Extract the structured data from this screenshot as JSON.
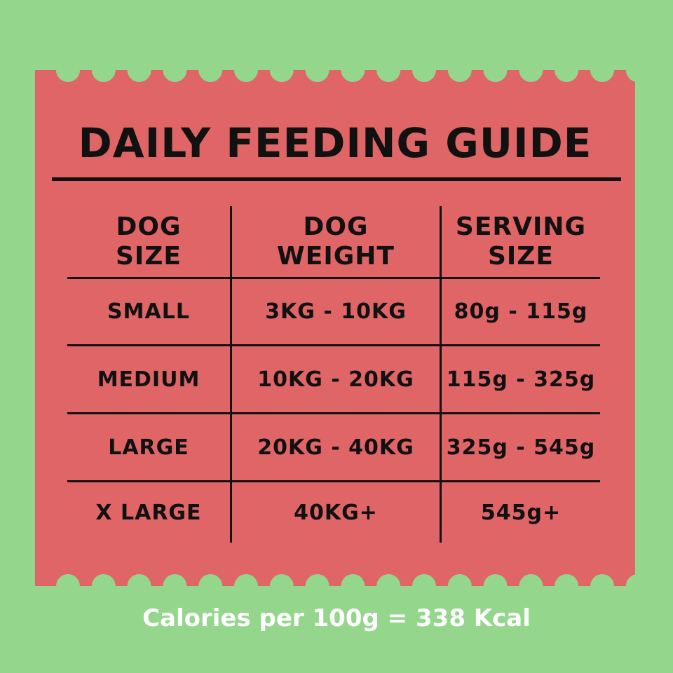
{
  "title": "DAILY FEEDING GUIDE",
  "table": {
    "headers": [
      [
        "DOG",
        "SIZE"
      ],
      [
        "DOG",
        "WEIGHT"
      ],
      [
        "SERVING",
        "SIZE"
      ]
    ],
    "rows": [
      [
        "SMALL",
        "3KG - 10KG",
        "80g - 115g"
      ],
      [
        "MEDIUM",
        "10KG - 20KG",
        "115g - 325g"
      ],
      [
        "LARGE",
        "20KG - 40KG",
        "325g - 545g"
      ],
      [
        "X LARGE",
        "40KG+",
        "545g+"
      ]
    ]
  },
  "footer": "Calories per 100g = 338 Kcal",
  "colors": {
    "background": "#94d68b",
    "ticket": "#df6566",
    "text_dark": "#111111",
    "text_light": "#ffffff"
  }
}
